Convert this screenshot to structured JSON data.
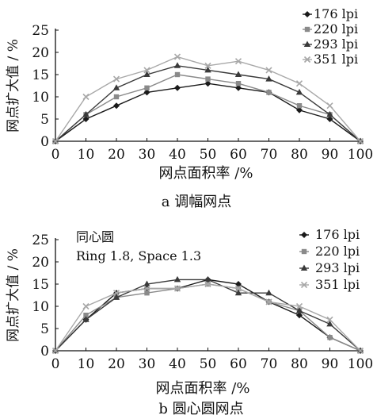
{
  "chart_data": [
    {
      "type": "line",
      "caption": "a 调幅网点",
      "title": "",
      "annotation": [],
      "xlabel": "网点面积率 /%",
      "ylabel": "网点扩大值 / %",
      "xlim": [
        0,
        100
      ],
      "ylim": [
        0,
        25
      ],
      "xticks": [
        0,
        10,
        20,
        30,
        40,
        50,
        60,
        70,
        80,
        90,
        100
      ],
      "yticks": [
        0,
        5,
        10,
        15,
        20,
        25
      ],
      "legend_position": "top-right",
      "grid": false,
      "x": [
        0,
        10,
        20,
        30,
        40,
        50,
        60,
        70,
        80,
        90,
        100
      ],
      "series": [
        {
          "name": "176 lpi",
          "marker": "diamond",
          "color": "#1a1a1a",
          "values": [
            0,
            5,
            8,
            11,
            12,
            13,
            12,
            11,
            7,
            5,
            0
          ]
        },
        {
          "name": "220 lpi",
          "marker": "square",
          "color": "#8a8a8a",
          "values": [
            0,
            6,
            10,
            12,
            15,
            14,
            13,
            11,
            8,
            6,
            0
          ]
        },
        {
          "name": "293 lpi",
          "marker": "triangle",
          "color": "#3a3a3a",
          "values": [
            0,
            6,
            12,
            15,
            17,
            16,
            15,
            14,
            11,
            6,
            0
          ]
        },
        {
          "name": "351 lpi",
          "marker": "cross",
          "color": "#a8a8a8",
          "values": [
            0,
            10,
            14,
            16,
            19,
            17,
            18,
            16,
            13,
            8,
            0
          ]
        }
      ]
    },
    {
      "type": "line",
      "caption": "b 圆心圆网点",
      "title": "",
      "annotation": [
        "同心圆",
        "Ring 1.8, Space 1.3"
      ],
      "xlabel": "网点面积率 /%",
      "ylabel": "网点扩大值 / %",
      "xlim": [
        0,
        100
      ],
      "ylim": [
        0,
        25
      ],
      "xticks": [
        0,
        10,
        20,
        30,
        40,
        50,
        60,
        70,
        80,
        90,
        100
      ],
      "yticks": [
        0,
        5,
        10,
        15,
        20,
        25
      ],
      "legend_position": "top-right",
      "grid": false,
      "x": [
        0,
        10,
        20,
        30,
        40,
        50,
        60,
        70,
        80,
        90,
        100
      ],
      "series": [
        {
          "name": "176 lpi",
          "marker": "diamond",
          "color": "#1a1a1a",
          "values": [
            0,
            7,
            13,
            14,
            14,
            16,
            15,
            11,
            8,
            3,
            0
          ]
        },
        {
          "name": "220 lpi",
          "marker": "square",
          "color": "#8a8a8a",
          "values": [
            0,
            8,
            12,
            13,
            14,
            15,
            14,
            11,
            9,
            3,
            0
          ]
        },
        {
          "name": "293 lpi",
          "marker": "triangle",
          "color": "#3a3a3a",
          "values": [
            0,
            7,
            12,
            15,
            16,
            16,
            13,
            13,
            9,
            6,
            0
          ]
        },
        {
          "name": "351 lpi",
          "marker": "cross",
          "color": "#a8a8a8",
          "values": [
            0,
            10,
            13,
            14,
            14,
            15,
            14,
            11,
            10,
            7,
            0
          ]
        }
      ]
    }
  ]
}
